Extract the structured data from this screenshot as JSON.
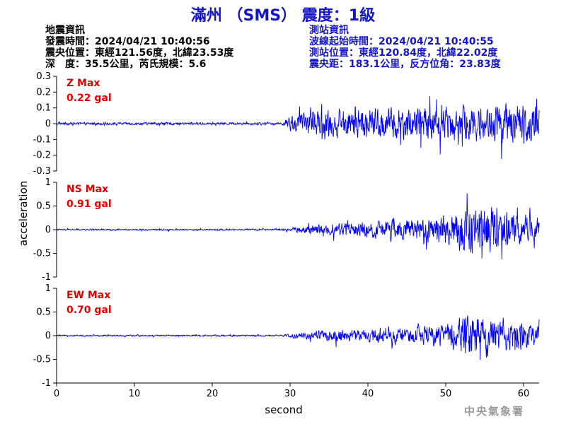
{
  "title": "滿州 （SMS） 震度：1級",
  "quake_info": {
    "heading": "地震資訊",
    "origin_time": "發震時間：2024/04/21 10:40:56",
    "epicenter": "震央位置：東經121.56度，北緯23.53度",
    "depth_magnitude": "深　度：35.5公里，芮氏規模：5.6"
  },
  "station_info": {
    "heading": "測站資訊",
    "wave_start": "波線起始時間：2024/04/21 10:40:55",
    "location": "測站位置：東經120.84度，北緯22.02度",
    "distance": "震央距：183.1公里，反方位角：23.83度"
  },
  "agency": "中央氣象署",
  "colors": {
    "trace": "#0000ff",
    "max_label": "#e00000",
    "title": "#1515c8"
  },
  "chart_data": {
    "type": "line",
    "xlabel": "second",
    "ylabel": "acceleration",
    "x_range": [
      0,
      62
    ],
    "x_ticks": [
      0,
      10,
      20,
      30,
      40,
      50,
      60
    ],
    "x_tick_labels": [
      "0",
      "10",
      "20",
      "30",
      "40",
      "50",
      "60"
    ],
    "grid": false,
    "panels": [
      {
        "component": "Z",
        "max_title": "Z Max",
        "max_value": "0.22 gal",
        "ylim": [
          -0.3,
          0.3
        ],
        "y_ticks": [
          -0.3,
          -0.2,
          -0.1,
          0,
          0.1,
          0.2,
          0.3
        ],
        "y_tick_labels": [
          "-0.3",
          "-0.2",
          "-0.1",
          "0",
          "0.1",
          "0.2",
          "0.3"
        ],
        "noise_level": 0.012,
        "envelope": [
          [
            0,
            0.01
          ],
          [
            29,
            0.01
          ],
          [
            30,
            0.07
          ],
          [
            35,
            0.11
          ],
          [
            45,
            0.13
          ],
          [
            55,
            0.15
          ],
          [
            62,
            0.16
          ]
        ]
      },
      {
        "component": "NS",
        "max_title": "NS Max",
        "max_value": "0.91 gal",
        "ylim": [
          -1,
          1
        ],
        "y_ticks": [
          -1,
          -0.5,
          0,
          0.5,
          1
        ],
        "y_tick_labels": [
          "-1",
          "-0.5",
          "0",
          "0.5",
          "1"
        ],
        "noise_level": 0.02,
        "envelope": [
          [
            0,
            0.02
          ],
          [
            29,
            0.02
          ],
          [
            31,
            0.08
          ],
          [
            35,
            0.16
          ],
          [
            45,
            0.25
          ],
          [
            50,
            0.35
          ],
          [
            54,
            0.75
          ],
          [
            57,
            0.5
          ],
          [
            62,
            0.3
          ]
        ]
      },
      {
        "component": "EW",
        "max_title": "EW Max",
        "max_value": "0.70 gal",
        "ylim": [
          -1,
          1
        ],
        "y_ticks": [
          -1,
          -0.5,
          0,
          0.5,
          1
        ],
        "y_tick_labels": [
          "-1",
          "-0.5",
          "0",
          "0.5",
          "1"
        ],
        "noise_level": 0.02,
        "envelope": [
          [
            0,
            0.02
          ],
          [
            29,
            0.02
          ],
          [
            31,
            0.08
          ],
          [
            35,
            0.15
          ],
          [
            45,
            0.2
          ],
          [
            50,
            0.3
          ],
          [
            54,
            0.6
          ],
          [
            57,
            0.45
          ],
          [
            62,
            0.25
          ]
        ]
      }
    ]
  }
}
